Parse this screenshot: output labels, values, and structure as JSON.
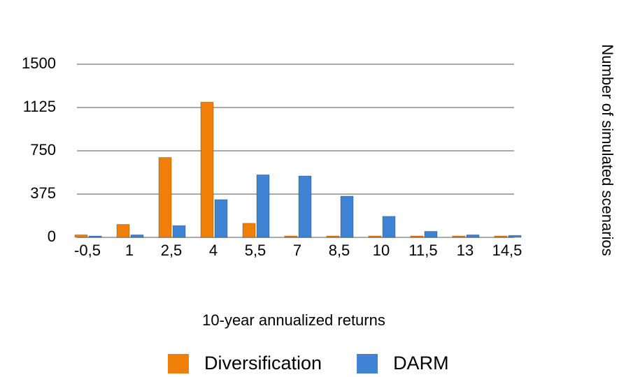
{
  "chart_data": {
    "type": "bar",
    "x_label": "10-year annualized returns",
    "y_label": "Number of simulated scenarios",
    "categories": [
      "-0,5",
      "1",
      "2,5",
      "4",
      "5,5",
      "7",
      "8,5",
      "10",
      "11,5",
      "13",
      "14,5"
    ],
    "series": [
      {
        "name": "Diversification",
        "color": "#f07f09",
        "values": [
          10,
          100,
          680,
          1160,
          110,
          0,
          0,
          0,
          0,
          0,
          0
        ]
      },
      {
        "name": "DARM",
        "color": "#3f83d4",
        "values": [
          0,
          10,
          90,
          315,
          530,
          520,
          345,
          170,
          40,
          10,
          5
        ]
      }
    ],
    "ylim": [
      0,
      1500
    ],
    "yticks": [
      0,
      375,
      750,
      1125,
      1500
    ],
    "grid": true,
    "legend": "bottom"
  }
}
